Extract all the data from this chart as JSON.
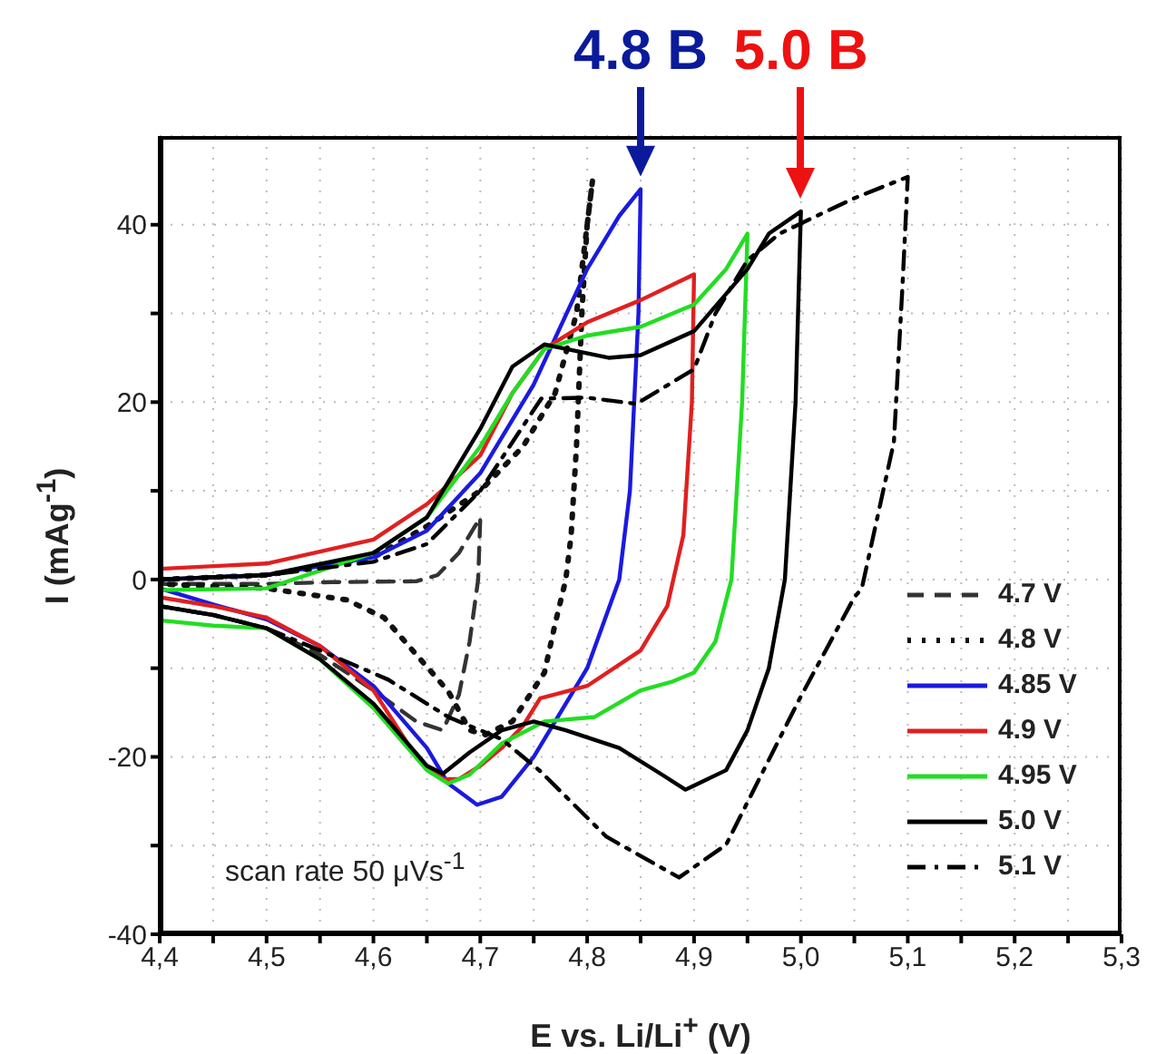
{
  "chart_data": {
    "type": "line",
    "xlabel": "E vs. Li/Li$^{+}$ (V)",
    "ylabel": "I (mAg$^{-1}$)",
    "xlim": [
      4.4,
      5.3
    ],
    "xticks": [
      {
        "value": 4.4,
        "label": "4,4"
      },
      {
        "value": 4.45,
        "label": null
      },
      {
        "value": 4.5,
        "label": "4,5"
      },
      {
        "value": 4.55,
        "label": null
      },
      {
        "value": 4.6,
        "label": "4,6"
      },
      {
        "value": 4.65,
        "label": null
      },
      {
        "value": 4.7,
        "label": "4,7"
      },
      {
        "value": 4.75,
        "label": null
      },
      {
        "value": 4.8,
        "label": "4,8"
      },
      {
        "value": 4.85,
        "label": null
      },
      {
        "value": 4.9,
        "label": "4,9"
      },
      {
        "value": 4.95,
        "label": null
      },
      {
        "value": 5.0,
        "label": "5,0"
      },
      {
        "value": 5.05,
        "label": null
      },
      {
        "value": 5.1,
        "label": "5,1"
      },
      {
        "value": 5.15,
        "label": null
      },
      {
        "value": 5.2,
        "label": "5,2"
      },
      {
        "value": 5.25,
        "label": null
      },
      {
        "value": 5.3,
        "label": "5,3"
      }
    ],
    "ylim": [
      -40,
      50
    ],
    "yticks": [
      -40,
      {
        "value": -30,
        "label": null
      },
      -20,
      {
        "value": -10,
        "label": null
      },
      0,
      {
        "value": 10,
        "label": null
      },
      20,
      {
        "value": 30,
        "label": null
      },
      40
    ],
    "grid": true,
    "legend": "bottom right",
    "marker": "none",
    "annotations": [
      {
        "text": "4.8 B",
        "x": 4.85,
        "y": 44
      },
      {
        "text": "5.0 B",
        "x": 5.0,
        "y": 41.5
      },
      "scan rate  50 μVs$^{-1}$"
    ],
    "series": [
      {
        "name": "4.7 V",
        "color": "#333333",
        "line_style": "dashed",
        "x": [
          4.4,
          4.5,
          4.56,
          4.64,
          4.66,
          4.68,
          4.695,
          4.7,
          4.698,
          4.69,
          4.68,
          4.665,
          4.64,
          4.6,
          4.55,
          4.5,
          4.45,
          4.4
        ],
        "values": [
          -0.5,
          -0.5,
          -0.3,
          -0.2,
          0.5,
          3,
          6,
          7,
          0,
          -7,
          -13,
          -17,
          -16,
          -12.5,
          -8.5,
          -5.5,
          -4,
          -3
        ]
      },
      {
        "name": "4.8 V",
        "color": "#111111",
        "line_style": "dotted",
        "x": [
          4.4,
          4.5,
          4.6,
          4.65,
          4.7,
          4.74,
          4.77,
          4.79,
          4.8,
          4.805,
          4.8,
          4.795,
          4.79,
          4.785,
          4.78,
          4.77,
          4.76,
          4.73,
          4.705,
          4.69,
          4.67,
          4.61,
          4.575,
          4.5,
          4.4
        ],
        "values": [
          0,
          0.5,
          2.5,
          6,
          10,
          15,
          21,
          30,
          40,
          45,
          40,
          30,
          15,
          5,
          0,
          -5,
          -10.5,
          -16,
          -17.5,
          -17,
          -12.6,
          -4.3,
          -2.3,
          -1,
          -0.5
        ]
      },
      {
        "name": "4.85 V",
        "color": "#1a1ae0",
        "line_style": "solid",
        "x": [
          4.4,
          4.5,
          4.6,
          4.65,
          4.7,
          4.75,
          4.8,
          4.83,
          4.85,
          4.848,
          4.84,
          4.83,
          4.8,
          4.75,
          4.72,
          4.697,
          4.67,
          4.65,
          4.6,
          4.55,
          4.5,
          4.45,
          4.4
        ],
        "values": [
          0,
          0.5,
          2.5,
          5.5,
          12,
          22,
          35,
          41,
          44,
          30,
          10,
          0,
          -10,
          -20,
          -24.5,
          -25.4,
          -23,
          -19,
          -12,
          -7.5,
          -4.5,
          -2.8,
          -1
        ]
      },
      {
        "name": "4.9 V",
        "color": "#e02020",
        "line_style": "solid",
        "x": [
          4.4,
          4.5,
          4.6,
          4.65,
          4.7,
          4.73,
          4.76,
          4.8,
          4.85,
          4.9,
          4.898,
          4.89,
          4.875,
          4.85,
          4.8,
          4.756,
          4.74,
          4.72,
          4.7,
          4.68,
          4.665,
          4.64,
          4.6,
          4.55,
          4.5,
          4.45,
          4.4
        ],
        "values": [
          1.2,
          1.8,
          4.5,
          8.5,
          14,
          21,
          26,
          29,
          31.5,
          34.4,
          20,
          5,
          -3,
          -8,
          -12,
          -13.4,
          -16.5,
          -19,
          -21,
          -22.5,
          -22.5,
          -20,
          -12.5,
          -7.5,
          -4.3,
          -3,
          -2
        ]
      },
      {
        "name": "4.95 V",
        "color": "#22dd22",
        "line_style": "solid",
        "x": [
          4.4,
          4.5,
          4.6,
          4.65,
          4.7,
          4.73,
          4.76,
          4.8,
          4.85,
          4.9,
          4.93,
          4.95,
          4.945,
          4.935,
          4.92,
          4.9,
          4.88,
          4.85,
          4.807,
          4.76,
          4.72,
          4.69,
          4.67,
          4.65,
          4.6,
          4.55,
          4.5,
          4.45,
          4.4
        ],
        "values": [
          -1.2,
          -1,
          3,
          7,
          15,
          21,
          26,
          27.5,
          28.5,
          31,
          35,
          39,
          20,
          0,
          -7,
          -10.5,
          -11.5,
          -12.5,
          -15.5,
          -16,
          -18.5,
          -22,
          -23,
          -21.5,
          -14.5,
          -9,
          -5.5,
          -5.2,
          -4.6
        ]
      },
      {
        "name": "5.0 V",
        "color": "#000000",
        "line_style": "solid",
        "x": [
          4.4,
          4.5,
          4.6,
          4.65,
          4.7,
          4.73,
          4.76,
          4.78,
          4.82,
          4.85,
          4.9,
          4.95,
          4.97,
          5.0,
          4.995,
          4.985,
          4.97,
          4.95,
          4.93,
          4.892,
          4.87,
          4.83,
          4.78,
          4.75,
          4.72,
          4.69,
          4.665,
          4.65,
          4.6,
          4.55,
          4.5,
          4.45,
          4.4
        ],
        "values": [
          0,
          0.5,
          3,
          7,
          17,
          24,
          26.5,
          26,
          25,
          25.3,
          28,
          35,
          39,
          41.5,
          20,
          0,
          -10,
          -17,
          -21.5,
          -23.7,
          -22,
          -19,
          -17,
          -16,
          -17,
          -19.5,
          -21.9,
          -21,
          -14,
          -9,
          -5.5,
          -4,
          -3
        ]
      },
      {
        "name": "5.1 V",
        "color": "#000000",
        "line_style": "dashdot",
        "x": [
          4.4,
          4.5,
          4.6,
          4.65,
          4.7,
          4.757,
          4.8,
          4.846,
          4.9,
          4.92,
          4.95,
          4.98,
          5.05,
          5.1,
          5.095,
          5.087,
          5.057,
          5.05,
          4.999,
          4.93,
          4.886,
          4.818,
          4.756,
          4.72,
          4.7,
          4.67,
          4.614,
          4.55,
          4.5,
          4.45,
          4.4
        ],
        "values": [
          0,
          0.5,
          2,
          4,
          10,
          20.4,
          20.5,
          19.8,
          23.7,
          30,
          36,
          39,
          43,
          45.4,
          33,
          15.5,
          -1,
          -2,
          -13.4,
          -29.9,
          -33.6,
          -29,
          -21.6,
          -18,
          -17,
          -15.5,
          -11.3,
          -8,
          -5.5,
          -4,
          -3
        ]
      }
    ]
  }
}
